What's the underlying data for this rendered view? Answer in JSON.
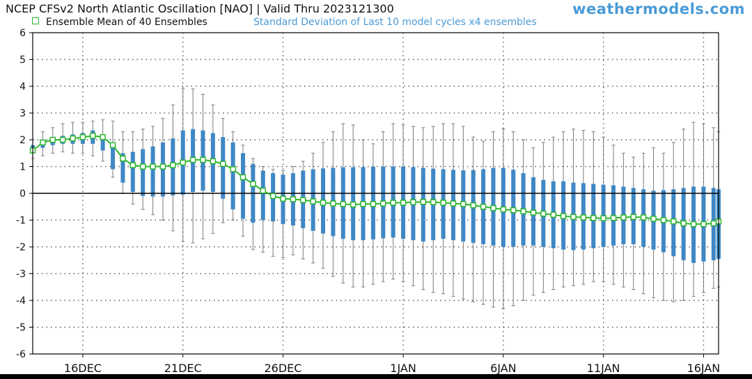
{
  "header": {
    "title": "NCEP CFSv2 North Atlantic Oscillation [NAO] | Valid Thru 2023121300",
    "brand": "weathermodels.com"
  },
  "legend": {
    "mean_label": "Ensemble Mean of 40 Ensembles",
    "sd_label": "Standard Deviation of Last 10 model cycles x4 ensembles"
  },
  "colors": {
    "mean_line": "#2db52d",
    "sd_bar": "#3f88c5",
    "whisker": "#7a7a7a",
    "grid": "#555555",
    "zero_line": "#000000"
  },
  "chart_data": {
    "type": "line",
    "ylim": [
      -6,
      6
    ],
    "yticks": [
      6,
      5,
      4,
      3,
      2,
      1,
      0,
      -1,
      -2,
      -3,
      -4,
      -5,
      -6
    ],
    "xticks": [
      {
        "label": "16DEC",
        "x": 16
      },
      {
        "label": "21DEC",
        "x": 21
      },
      {
        "label": "26DEC",
        "x": 26
      },
      {
        "label": "1JAN",
        "x": 32
      },
      {
        "label": "6JAN",
        "x": 37
      },
      {
        "label": "11JAN",
        "x": 42
      },
      {
        "label": "16JAN",
        "x": 47
      }
    ],
    "xlim": [
      13.5,
      47.75
    ],
    "grid": true,
    "series": [
      {
        "name": "Ensemble Mean of 40 Ensembles",
        "x": [
          13.5,
          14,
          14.5,
          15,
          15.5,
          16,
          16.5,
          17,
          17.5,
          18,
          18.5,
          19,
          19.5,
          20,
          20.5,
          21,
          21.5,
          22,
          22.5,
          23,
          23.5,
          24,
          24.5,
          25,
          25.5,
          26,
          26.5,
          27,
          27.5,
          28,
          28.5,
          29,
          29.5,
          30,
          30.5,
          31,
          31.5,
          32,
          32.5,
          33,
          33.5,
          34,
          34.5,
          35,
          35.5,
          36,
          36.5,
          37,
          37.5,
          38,
          38.5,
          39,
          39.5,
          40,
          40.5,
          41,
          41.5,
          42,
          42.5,
          43,
          43.5,
          44,
          44.5,
          45,
          45.5,
          46,
          46.5,
          47,
          47.5,
          47.75
        ],
        "y": [
          1.6,
          1.9,
          2.0,
          2.0,
          2.05,
          2.1,
          2.15,
          2.1,
          1.8,
          1.3,
          1.05,
          1.0,
          1.0,
          1.0,
          1.05,
          1.15,
          1.25,
          1.25,
          1.2,
          1.1,
          0.9,
          0.6,
          0.35,
          0.1,
          -0.1,
          -0.2,
          -0.22,
          -0.25,
          -0.3,
          -0.35,
          -0.38,
          -0.4,
          -0.42,
          -0.4,
          -0.4,
          -0.38,
          -0.35,
          -0.35,
          -0.33,
          -0.32,
          -0.33,
          -0.35,
          -0.38,
          -0.4,
          -0.45,
          -0.5,
          -0.55,
          -0.6,
          -0.63,
          -0.67,
          -0.72,
          -0.76,
          -0.8,
          -0.85,
          -0.88,
          -0.9,
          -0.92,
          -0.93,
          -0.92,
          -0.9,
          -0.88,
          -0.9,
          -0.95,
          -1.0,
          -1.05,
          -1.12,
          -1.15,
          -1.15,
          -1.12,
          -1.05
        ]
      },
      {
        "name": "Standard Deviation of Last 10 model cycles x4 ensembles",
        "upper": [
          1.8,
          2.0,
          2.1,
          2.15,
          2.2,
          2.25,
          2.35,
          2.2,
          1.8,
          1.5,
          1.55,
          1.65,
          1.75,
          1.9,
          2.05,
          2.35,
          2.4,
          2.35,
          2.25,
          2.1,
          1.9,
          1.5,
          1.1,
          0.85,
          0.75,
          0.7,
          0.75,
          0.85,
          0.9,
          0.93,
          0.95,
          0.97,
          0.97,
          0.98,
          1.0,
          1.0,
          1.0,
          1.0,
          0.98,
          0.95,
          0.92,
          0.9,
          0.88,
          0.86,
          0.87,
          0.9,
          0.95,
          0.95,
          0.88,
          0.75,
          0.6,
          0.5,
          0.45,
          0.45,
          0.4,
          0.38,
          0.35,
          0.32,
          0.3,
          0.25,
          0.2,
          0.15,
          0.1,
          0.12,
          0.15,
          0.2,
          0.25,
          0.25,
          0.2,
          0.15
        ],
        "lower": [
          1.5,
          1.7,
          1.8,
          1.85,
          1.85,
          1.85,
          1.85,
          1.6,
          0.9,
          0.4,
          0.05,
          -0.1,
          -0.12,
          -0.12,
          -0.08,
          -0.05,
          0.05,
          0.1,
          0.05,
          -0.2,
          -0.6,
          -0.95,
          -1.1,
          -1.0,
          -1.05,
          -1.15,
          -1.2,
          -1.3,
          -1.4,
          -1.5,
          -1.6,
          -1.7,
          -1.75,
          -1.75,
          -1.72,
          -1.68,
          -1.65,
          -1.7,
          -1.75,
          -1.8,
          -1.75,
          -1.7,
          -1.75,
          -1.8,
          -1.85,
          -1.9,
          -1.95,
          -2.0,
          -2.0,
          -1.95,
          -1.95,
          -2.0,
          -2.05,
          -2.1,
          -2.12,
          -2.1,
          -2.05,
          -2.0,
          -1.95,
          -1.9,
          -1.9,
          -2.0,
          -2.1,
          -2.2,
          -2.35,
          -2.5,
          -2.6,
          -2.55,
          -2.5,
          -2.45
        ],
        "whisker_upper": [
          2.0,
          2.3,
          2.45,
          2.6,
          2.65,
          2.65,
          2.7,
          2.75,
          2.7,
          2.3,
          2.3,
          2.4,
          2.5,
          2.8,
          3.3,
          3.9,
          3.9,
          3.7,
          3.3,
          2.8,
          2.3,
          1.8,
          1.3,
          1.0,
          0.9,
          0.85,
          1.0,
          1.2,
          1.5,
          1.9,
          2.3,
          2.6,
          2.55,
          2.0,
          1.85,
          2.3,
          2.6,
          2.55,
          2.5,
          2.45,
          2.5,
          2.6,
          2.6,
          2.5,
          2.1,
          1.95,
          2.3,
          2.4,
          2.3,
          2.0,
          1.7,
          1.9,
          2.1,
          2.3,
          2.4,
          2.35,
          2.3,
          2.1,
          1.8,
          1.5,
          1.35,
          1.5,
          1.7,
          1.5,
          1.9,
          2.4,
          2.65,
          2.6,
          2.45,
          2.3
        ],
        "whisker_lower": [
          1.3,
          1.4,
          1.5,
          1.55,
          1.5,
          1.5,
          1.4,
          1.2,
          0.6,
          0.0,
          -0.4,
          -0.6,
          -0.8,
          -1.0,
          -1.4,
          -1.8,
          -1.85,
          -1.7,
          -1.5,
          -1.1,
          -1.0,
          -1.6,
          -2.1,
          -2.2,
          -2.35,
          -2.4,
          -2.3,
          -2.45,
          -2.6,
          -2.8,
          -3.1,
          -3.35,
          -3.5,
          -3.5,
          -3.4,
          -3.3,
          -3.2,
          -3.3,
          -3.45,
          -3.6,
          -3.7,
          -3.75,
          -3.85,
          -3.95,
          -4.05,
          -4.15,
          -4.25,
          -4.3,
          -4.2,
          -4.0,
          -3.8,
          -3.7,
          -3.6,
          -3.5,
          -3.45,
          -3.4,
          -3.3,
          -3.3,
          -3.4,
          -3.5,
          -3.6,
          -3.75,
          -3.9,
          -4.0,
          -4.05,
          -4.0,
          -3.85,
          -3.7,
          -3.55,
          -3.5
        ]
      }
    ]
  }
}
